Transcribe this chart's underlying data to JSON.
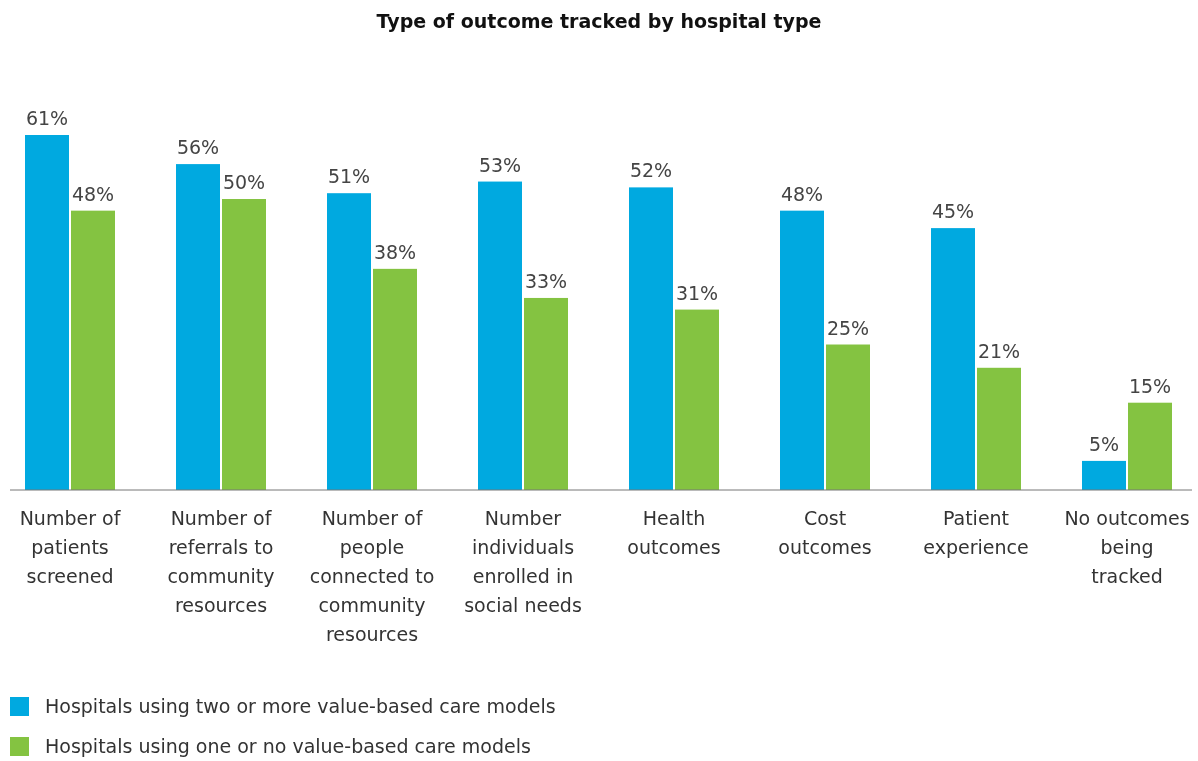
{
  "chart_data": {
    "type": "bar",
    "title": "Type of outcome tracked by hospital type",
    "categories": [
      "Number of patients screened",
      "Number of referrals to community resources",
      "Number of people connected to community resources",
      "Number individuals enrolled in social needs",
      "Health outcomes",
      "Cost outcomes",
      "Patient experience",
      "No outcomes being tracked"
    ],
    "series": [
      {
        "name": "Hospitals using two or more value-based care models",
        "color": "#00a9e0",
        "values": [
          61,
          56,
          51,
          53,
          52,
          48,
          45,
          5
        ],
        "value_labels": [
          "61%",
          "56%",
          "51%",
          "53%",
          "52%",
          "48%",
          "45%",
          "5%"
        ]
      },
      {
        "name": "Hospitals using one or no value-based care models",
        "color": "#84c341",
        "values": [
          48,
          50,
          38,
          33,
          31,
          25,
          21,
          15
        ],
        "value_labels": [
          "48%",
          "50%",
          "38%",
          "33%",
          "31%",
          "25%",
          "21%",
          "15%"
        ]
      }
    ],
    "legend": "bottom left"
  }
}
